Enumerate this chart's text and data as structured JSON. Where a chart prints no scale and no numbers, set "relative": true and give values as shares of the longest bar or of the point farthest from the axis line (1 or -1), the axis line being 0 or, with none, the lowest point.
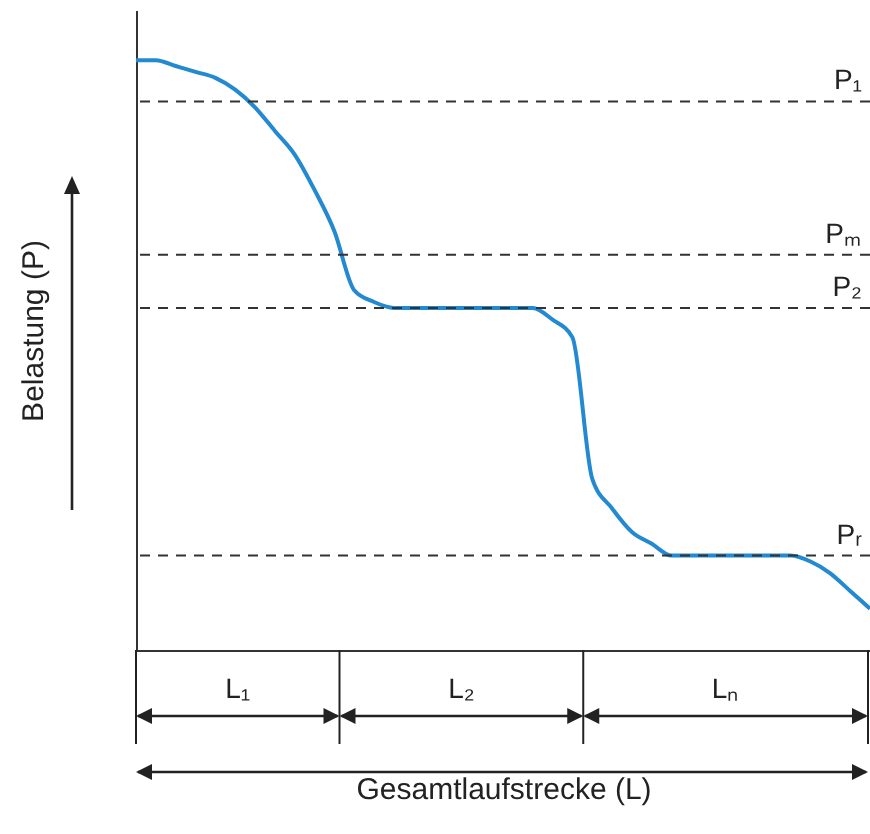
{
  "chart_data": {
    "type": "line",
    "relative": true,
    "xlabel": "Gesamtlaufstrecke (L)",
    "ylabel": "Belastung (P)",
    "categories": [
      null,
      null,
      null,
      null,
      null,
      null,
      null,
      null,
      null,
      null,
      null,
      null,
      null,
      null,
      null,
      null,
      null,
      null,
      null,
      null,
      null,
      null,
      null,
      null,
      null,
      null,
      null,
      null,
      null,
      null,
      null,
      null,
      null,
      null,
      null,
      null,
      null,
      null
    ],
    "series": [
      {
        "color": "#2389d1",
        "values": [
          1.0,
          1.0,
          0.99,
          0.98,
          0.97,
          0.95,
          0.92,
          0.88,
          0.84,
          0.78,
          0.71,
          0.61,
          0.59,
          0.58,
          0.58,
          0.58,
          0.58,
          0.58,
          0.58,
          0.58,
          0.58,
          0.56,
          0.53,
          0.29,
          0.24,
          0.2,
          0.18,
          0.16,
          0.16,
          0.16,
          0.16,
          0.16,
          0.16,
          0.16,
          0.15,
          0.13,
          0.1,
          0.07
        ]
      }
    ],
    "ref_lines": [
      {
        "axis": "y",
        "value": 0.93,
        "label": "P₁",
        "color": "#333333",
        "line_style": "dashed"
      },
      {
        "axis": "y",
        "value": 0.67,
        "label": "Pₘ",
        "color": "#333333",
        "line_style": "dashed"
      },
      {
        "axis": "y",
        "value": 0.58,
        "label": "P₂",
        "color": "#333333",
        "line_style": "dashed"
      },
      {
        "axis": "y",
        "value": 0.16,
        "label": "Pᵣ",
        "color": "#333333",
        "line_style": "dashed"
      }
    ],
    "annotations": [
      "L₁",
      "L₂",
      "Lₙ"
    ],
    "grid": false,
    "tick_labels": false
  }
}
